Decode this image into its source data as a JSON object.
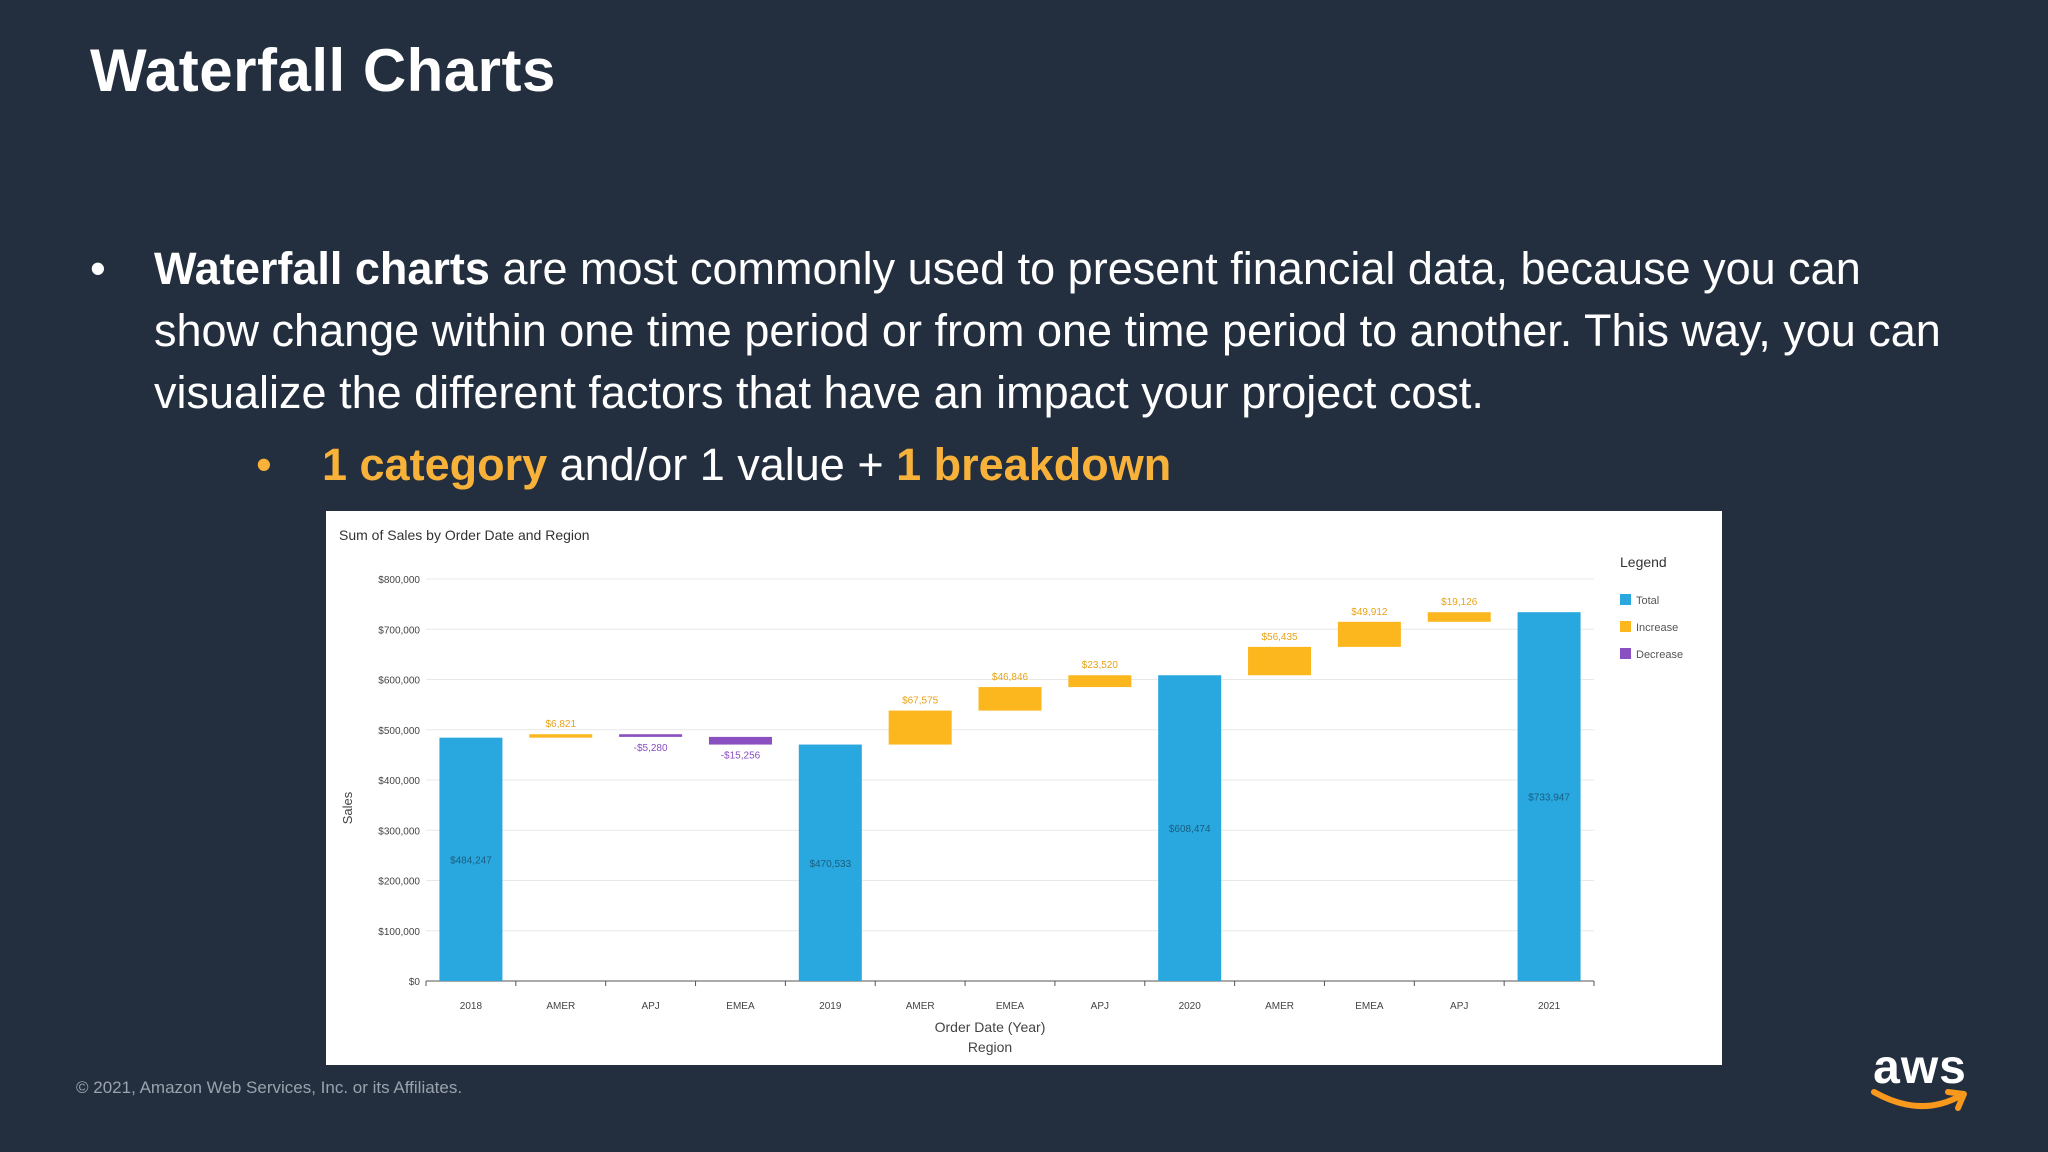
{
  "slide": {
    "title": "Waterfall Charts",
    "bullet1": {
      "bold": "Waterfall charts",
      "rest": " are most commonly used to present financial data, because you can show change within one time period or from one time period to another. This way, you can visualize the different factors that have an impact your project cost."
    },
    "bullet2": {
      "part1": "1 category",
      "part2": " and/or 1 value + ",
      "part3": "1 breakdown"
    },
    "footer": "© 2021, Amazon Web Services, Inc. or its Affiliates.",
    "logo_text": "aws"
  },
  "colors": {
    "background": "#232f3e",
    "accent": "#f8b23a",
    "total": "#29a8df",
    "increase": "#fbb71d",
    "decrease": "#8a4fc1"
  },
  "chart_data": {
    "type": "bar",
    "subtype": "waterfall",
    "title": "Sum of Sales by Order Date and Region",
    "ylabel": "Sales",
    "xlabel_line1": "Order Date (Year)",
    "xlabel_line2": "Region",
    "ylim": [
      0,
      800000
    ],
    "y_ticks": [
      "$0",
      "$100,000",
      "$200,000",
      "$300,000",
      "$400,000",
      "$500,000",
      "$600,000",
      "$700,000",
      "$800,000"
    ],
    "grid": true,
    "legend": {
      "title": "Legend",
      "position": "right",
      "items": [
        {
          "name": "Total",
          "kind": "total"
        },
        {
          "name": "Increase",
          "kind": "increase"
        },
        {
          "name": "Decrease",
          "kind": "decrease"
        }
      ]
    },
    "categories": [
      "2018",
      "AMER",
      "APJ",
      "EMEA",
      "2019",
      "AMER",
      "EMEA",
      "APJ",
      "2020",
      "AMER",
      "EMEA",
      "APJ",
      "2021"
    ],
    "steps": [
      {
        "kind": "total",
        "value": 484247,
        "label": "$484,247"
      },
      {
        "kind": "increase",
        "value": 6821,
        "label": "$6,821"
      },
      {
        "kind": "decrease",
        "value": -5280,
        "label": "-$5,280"
      },
      {
        "kind": "decrease",
        "value": -15256,
        "label": "-$15,256"
      },
      {
        "kind": "total",
        "value": 470533,
        "label": "$470,533"
      },
      {
        "kind": "increase",
        "value": 67575,
        "label": "$67,575"
      },
      {
        "kind": "increase",
        "value": 46846,
        "label": "$46,846"
      },
      {
        "kind": "increase",
        "value": 23520,
        "label": "$23,520"
      },
      {
        "kind": "total",
        "value": 608474,
        "label": "$608,474"
      },
      {
        "kind": "increase",
        "value": 56435,
        "label": "$56,435"
      },
      {
        "kind": "increase",
        "value": 49912,
        "label": "$49,912"
      },
      {
        "kind": "increase",
        "value": 19126,
        "label": "$19,126"
      },
      {
        "kind": "total",
        "value": 733947,
        "label": "$733,947"
      }
    ]
  }
}
